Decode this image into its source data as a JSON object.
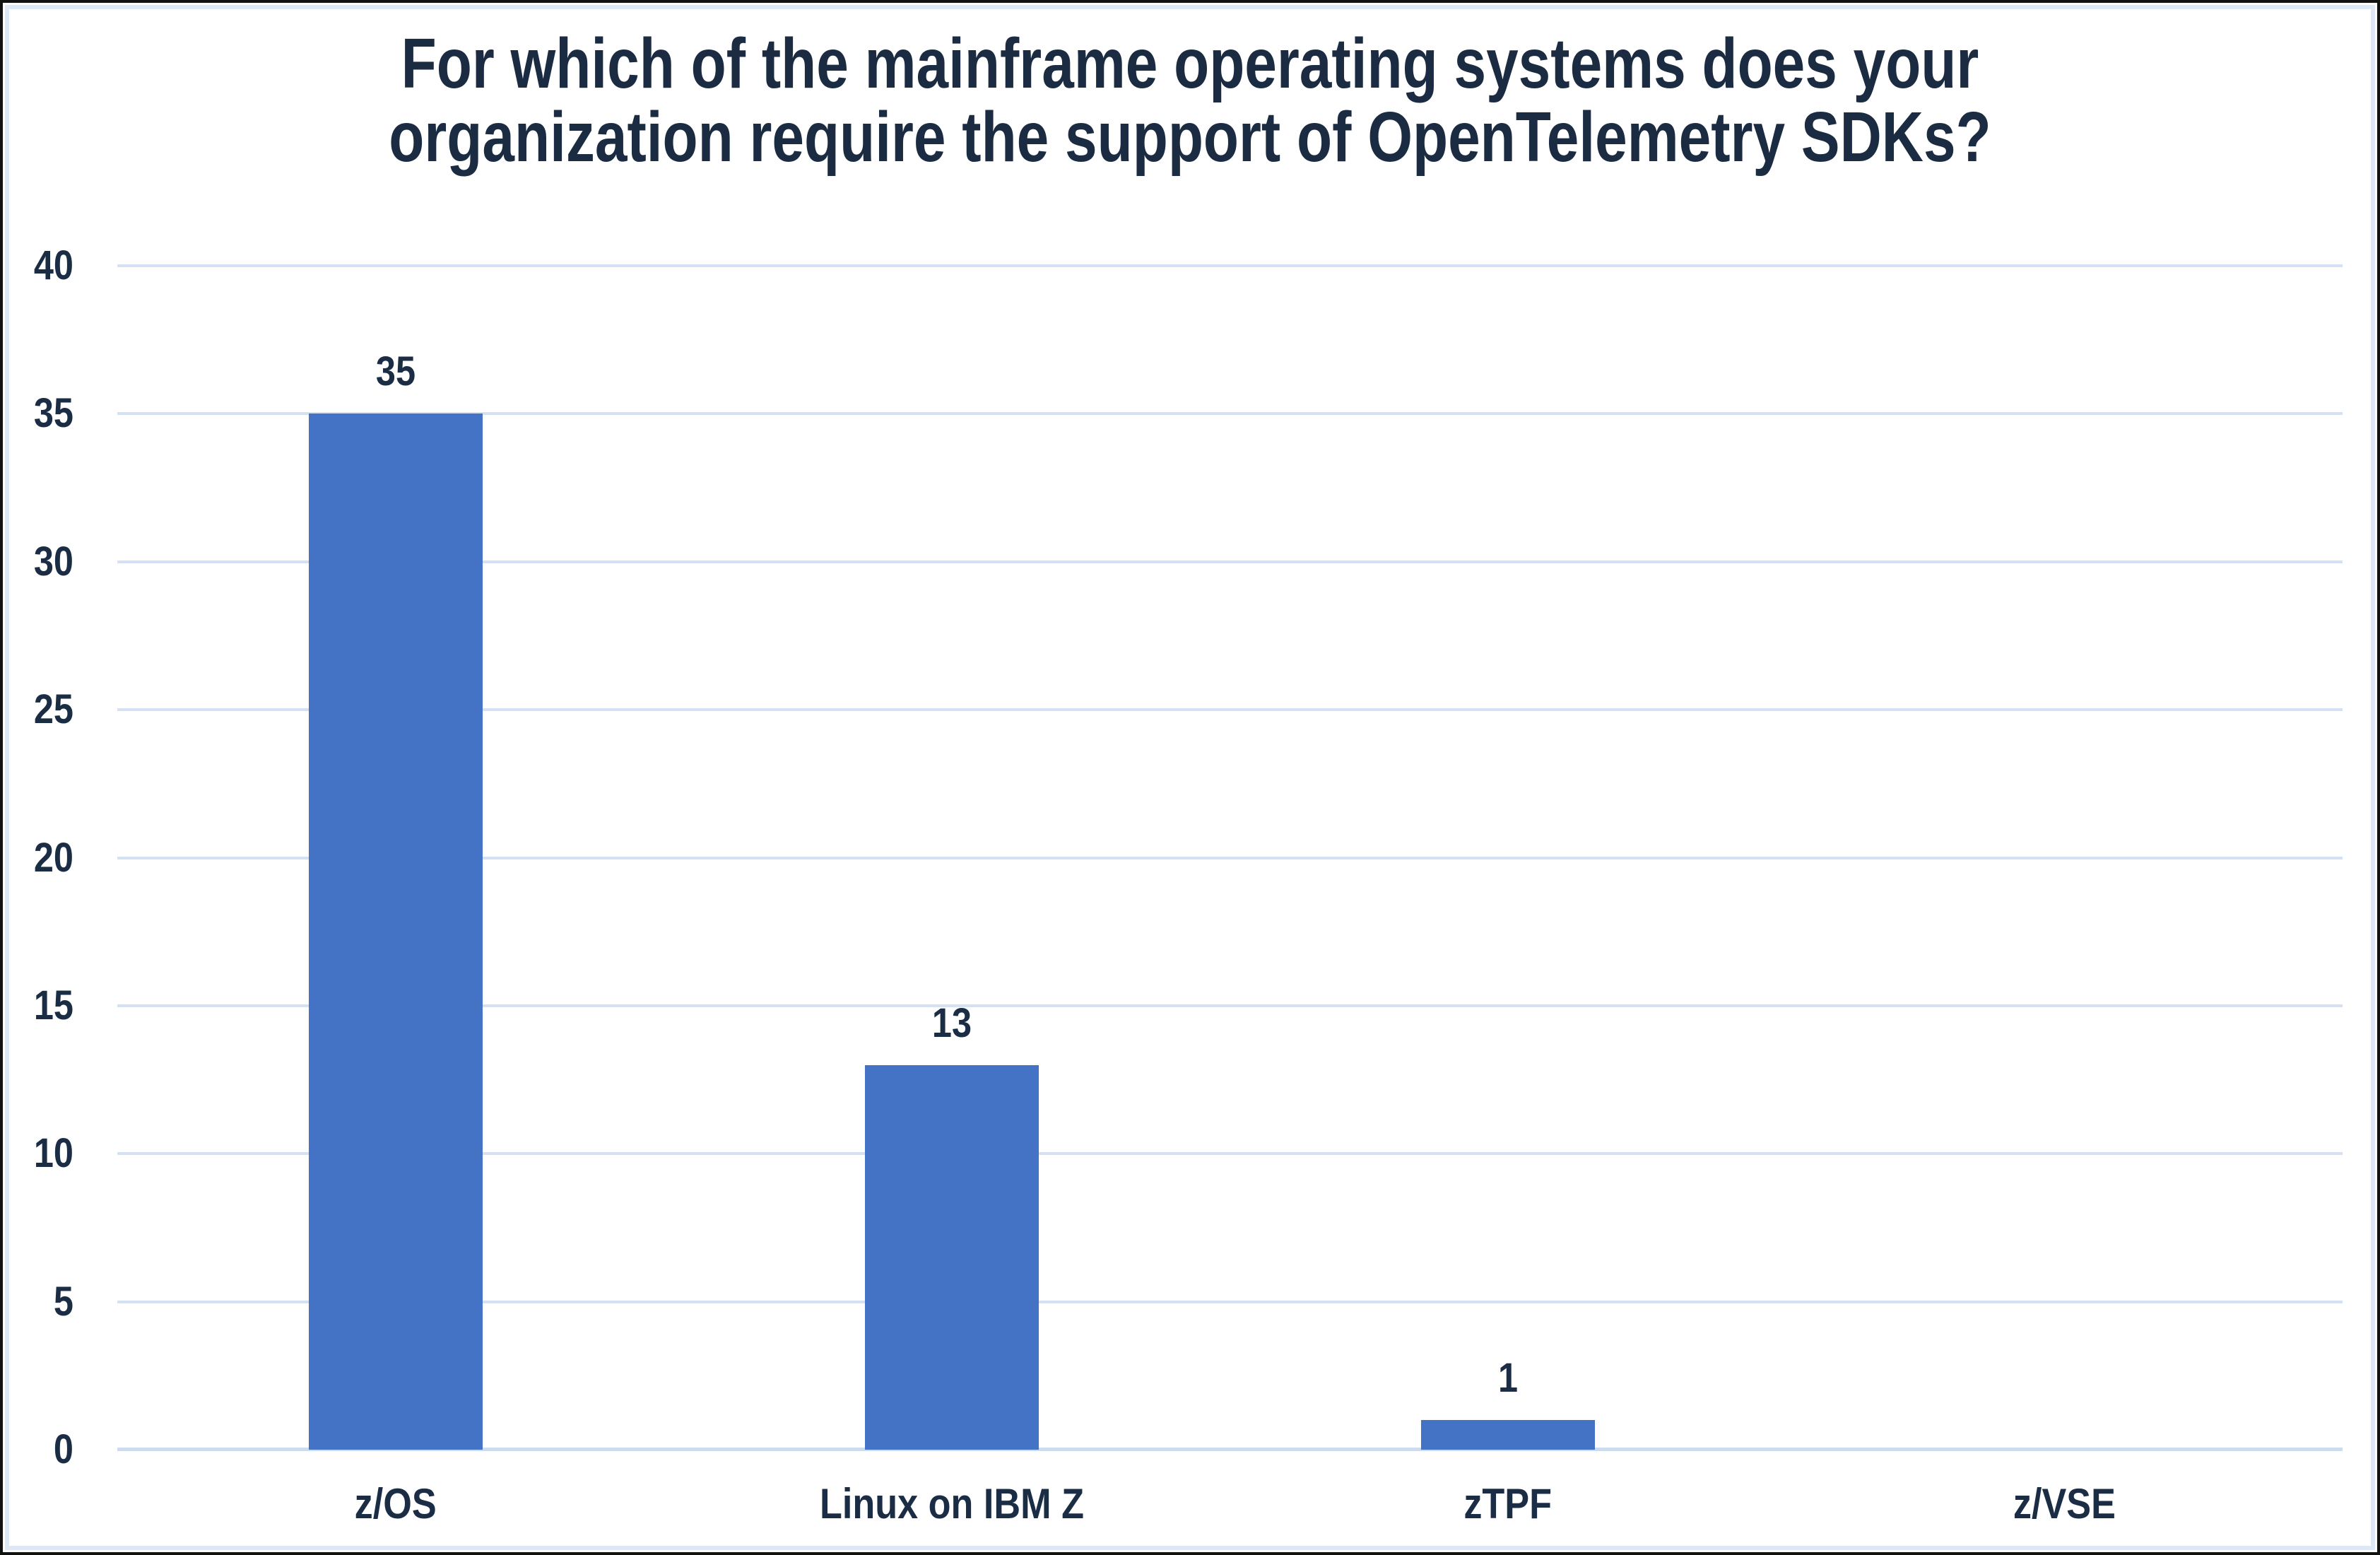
{
  "title": {
    "line1": "For which of the mainframe operating systems does your",
    "line2": "organization require the support of OpenTelemetry SDKs?"
  },
  "chart_data": {
    "type": "bar",
    "title": "For which of the mainframe operating systems does your organization require the support of OpenTelemetry SDKs?",
    "categories": [
      "z/OS",
      "Linux on IBM Z",
      "zTPF",
      "z/VSE"
    ],
    "values": [
      35,
      13,
      1,
      0
    ],
    "data_labels": [
      "35",
      "13",
      "1",
      ""
    ],
    "xlabel": "",
    "ylabel": "",
    "ylim": [
      0,
      40
    ],
    "yticks": [
      0,
      5,
      10,
      15,
      20,
      25,
      30,
      35,
      40
    ],
    "grid": true,
    "legend": false
  },
  "colors": {
    "bar": "#4472C4",
    "text": "#1b2d45",
    "title_text": "#1a2b42",
    "gridline": "#d3e1f2",
    "axis_line": "#ccdcee",
    "inner_frame": "#dce8f6",
    "border": "#111111",
    "background": "#ffffff"
  }
}
